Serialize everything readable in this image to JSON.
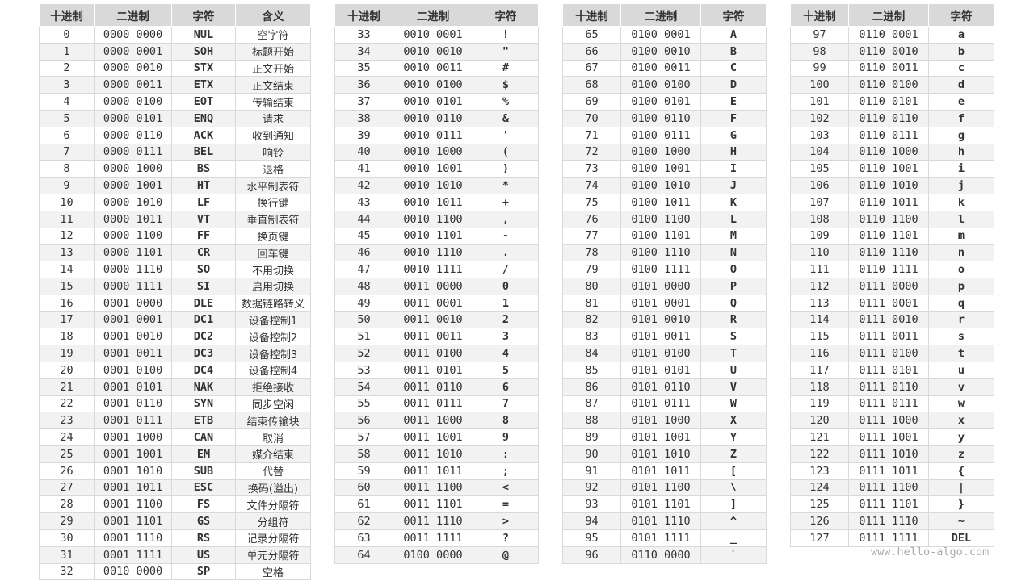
{
  "tables": [
    {
      "header": [
        "十进制",
        "二进制",
        "字符",
        "含义"
      ],
      "rows": [
        [
          0,
          "0000 0000",
          "NUL",
          "空字符"
        ],
        [
          1,
          "0000 0001",
          "SOH",
          "标题开始"
        ],
        [
          2,
          "0000 0010",
          "STX",
          "正文开始"
        ],
        [
          3,
          "0000 0011",
          "ETX",
          "正文结束"
        ],
        [
          4,
          "0000 0100",
          "EOT",
          "传输结束"
        ],
        [
          5,
          "0000 0101",
          "ENQ",
          "请求"
        ],
        [
          6,
          "0000 0110",
          "ACK",
          "收到通知"
        ],
        [
          7,
          "0000 0111",
          "BEL",
          "响铃"
        ],
        [
          8,
          "0000 1000",
          "BS",
          "退格"
        ],
        [
          9,
          "0000 1001",
          "HT",
          "水平制表符"
        ],
        [
          10,
          "0000 1010",
          "LF",
          "换行键"
        ],
        [
          11,
          "0000 1011",
          "VT",
          "垂直制表符"
        ],
        [
          12,
          "0000 1100",
          "FF",
          "换页键"
        ],
        [
          13,
          "0000 1101",
          "CR",
          "回车键"
        ],
        [
          14,
          "0000 1110",
          "SO",
          "不用切换"
        ],
        [
          15,
          "0000 1111",
          "SI",
          "启用切换"
        ],
        [
          16,
          "0001 0000",
          "DLE",
          "数据链路转义"
        ],
        [
          17,
          "0001 0001",
          "DC1",
          "设备控制1"
        ],
        [
          18,
          "0001 0010",
          "DC2",
          "设备控制2"
        ],
        [
          19,
          "0001 0011",
          "DC3",
          "设备控制3"
        ],
        [
          20,
          "0001 0100",
          "DC4",
          "设备控制4"
        ],
        [
          21,
          "0001 0101",
          "NAK",
          "拒绝接收"
        ],
        [
          22,
          "0001 0110",
          "SYN",
          "同步空闲"
        ],
        [
          23,
          "0001 0111",
          "ETB",
          "结束传输块"
        ],
        [
          24,
          "0001 1000",
          "CAN",
          "取消"
        ],
        [
          25,
          "0001 1001",
          "EM",
          "媒介结束"
        ],
        [
          26,
          "0001 1010",
          "SUB",
          "代替"
        ],
        [
          27,
          "0001 1011",
          "ESC",
          "换码(溢出)"
        ],
        [
          28,
          "0001 1100",
          "FS",
          "文件分隔符"
        ],
        [
          29,
          "0001 1101",
          "GS",
          "分组符"
        ],
        [
          30,
          "0001 1110",
          "RS",
          "记录分隔符"
        ],
        [
          31,
          "0001 1111",
          "US",
          "单元分隔符"
        ],
        [
          32,
          "0010 0000",
          "SP",
          "空格"
        ]
      ]
    },
    {
      "header": [
        "十进制",
        "二进制",
        "字符"
      ],
      "rows": [
        [
          33,
          "0010 0001",
          "!"
        ],
        [
          34,
          "0010 0010",
          "\""
        ],
        [
          35,
          "0010 0011",
          "#"
        ],
        [
          36,
          "0010 0100",
          "$"
        ],
        [
          37,
          "0010 0101",
          "%"
        ],
        [
          38,
          "0010 0110",
          "&"
        ],
        [
          39,
          "0010 0111",
          "'"
        ],
        [
          40,
          "0010 1000",
          "("
        ],
        [
          41,
          "0010 1001",
          ")"
        ],
        [
          42,
          "0010 1010",
          "*"
        ],
        [
          43,
          "0010 1011",
          "+"
        ],
        [
          44,
          "0010 1100",
          ","
        ],
        [
          45,
          "0010 1101",
          "-"
        ],
        [
          46,
          "0010 1110",
          "."
        ],
        [
          47,
          "0010 1111",
          "/"
        ],
        [
          48,
          "0011 0000",
          "0"
        ],
        [
          49,
          "0011 0001",
          "1"
        ],
        [
          50,
          "0011 0010",
          "2"
        ],
        [
          51,
          "0011 0011",
          "3"
        ],
        [
          52,
          "0011 0100",
          "4"
        ],
        [
          53,
          "0011 0101",
          "5"
        ],
        [
          54,
          "0011 0110",
          "6"
        ],
        [
          55,
          "0011 0111",
          "7"
        ],
        [
          56,
          "0011 1000",
          "8"
        ],
        [
          57,
          "0011 1001",
          "9"
        ],
        [
          58,
          "0011 1010",
          ":"
        ],
        [
          59,
          "0011 1011",
          ";"
        ],
        [
          60,
          "0011 1100",
          "<"
        ],
        [
          61,
          "0011 1101",
          "="
        ],
        [
          62,
          "0011 1110",
          ">"
        ],
        [
          63,
          "0011 1111",
          "?"
        ],
        [
          64,
          "0100 0000",
          "@"
        ]
      ]
    },
    {
      "header": [
        "十进制",
        "二进制",
        "字符"
      ],
      "rows": [
        [
          65,
          "0100 0001",
          "A"
        ],
        [
          66,
          "0100 0010",
          "B"
        ],
        [
          67,
          "0100 0011",
          "C"
        ],
        [
          68,
          "0100 0100",
          "D"
        ],
        [
          69,
          "0100 0101",
          "E"
        ],
        [
          70,
          "0100 0110",
          "F"
        ],
        [
          71,
          "0100 0111",
          "G"
        ],
        [
          72,
          "0100 1000",
          "H"
        ],
        [
          73,
          "0100 1001",
          "I"
        ],
        [
          74,
          "0100 1010",
          "J"
        ],
        [
          75,
          "0100 1011",
          "K"
        ],
        [
          76,
          "0100 1100",
          "L"
        ],
        [
          77,
          "0100 1101",
          "M"
        ],
        [
          78,
          "0100 1110",
          "N"
        ],
        [
          79,
          "0100 1111",
          "O"
        ],
        [
          80,
          "0101 0000",
          "P"
        ],
        [
          81,
          "0101 0001",
          "Q"
        ],
        [
          82,
          "0101 0010",
          "R"
        ],
        [
          83,
          "0101 0011",
          "S"
        ],
        [
          84,
          "0101 0100",
          "T"
        ],
        [
          85,
          "0101 0101",
          "U"
        ],
        [
          86,
          "0101 0110",
          "V"
        ],
        [
          87,
          "0101 0111",
          "W"
        ],
        [
          88,
          "0101 1000",
          "X"
        ],
        [
          89,
          "0101 1001",
          "Y"
        ],
        [
          90,
          "0101 1010",
          "Z"
        ],
        [
          91,
          "0101 1011",
          "["
        ],
        [
          92,
          "0101 1100",
          "\\"
        ],
        [
          93,
          "0101 1101",
          "]"
        ],
        [
          94,
          "0101 1110",
          "^"
        ],
        [
          95,
          "0101 1111",
          "_"
        ],
        [
          96,
          "0110 0000",
          "`"
        ]
      ]
    },
    {
      "header": [
        "十进制",
        "二进制",
        "字符"
      ],
      "rows": [
        [
          97,
          "0110 0001",
          "a"
        ],
        [
          98,
          "0110 0010",
          "b"
        ],
        [
          99,
          "0110 0011",
          "c"
        ],
        [
          100,
          "0110 0100",
          "d"
        ],
        [
          101,
          "0110 0101",
          "e"
        ],
        [
          102,
          "0110 0110",
          "f"
        ],
        [
          103,
          "0110 0111",
          "g"
        ],
        [
          104,
          "0110 1000",
          "h"
        ],
        [
          105,
          "0110 1001",
          "i"
        ],
        [
          106,
          "0110 1010",
          "j"
        ],
        [
          107,
          "0110 1011",
          "k"
        ],
        [
          108,
          "0110 1100",
          "l"
        ],
        [
          109,
          "0110 1101",
          "m"
        ],
        [
          110,
          "0110 1110",
          "n"
        ],
        [
          111,
          "0110 1111",
          "o"
        ],
        [
          112,
          "0111 0000",
          "p"
        ],
        [
          113,
          "0111 0001",
          "q"
        ],
        [
          114,
          "0111 0010",
          "r"
        ],
        [
          115,
          "0111 0011",
          "s"
        ],
        [
          116,
          "0111 0100",
          "t"
        ],
        [
          117,
          "0111 0101",
          "u"
        ],
        [
          118,
          "0111 0110",
          "v"
        ],
        [
          119,
          "0111 0111",
          "w"
        ],
        [
          120,
          "0111 1000",
          "x"
        ],
        [
          121,
          "0111 1001",
          "y"
        ],
        [
          122,
          "0111 1010",
          "z"
        ],
        [
          123,
          "0111 1011",
          "{"
        ],
        [
          124,
          "0111 1100",
          "|"
        ],
        [
          125,
          "0111 1101",
          "}"
        ],
        [
          126,
          "0111 1110",
          "~"
        ],
        [
          127,
          "0111 1111",
          "DEL"
        ]
      ]
    }
  ],
  "watermark": "www.hello-algo.com"
}
